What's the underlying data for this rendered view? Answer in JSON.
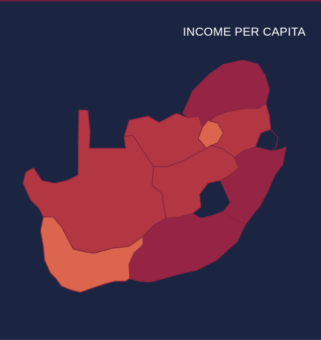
{
  "title": "INCOME PER CAPITA",
  "colors": {
    "background": "#1b2541",
    "dark": "#962444",
    "medium": "#b23742",
    "light": "#db654d",
    "hole": "#1b2541"
  },
  "regions": [
    {
      "id": "limpopo",
      "shade": "dark"
    },
    {
      "id": "mpumalanga",
      "shade": "medium"
    },
    {
      "id": "north-west",
      "shade": "medium"
    },
    {
      "id": "gauteng",
      "shade": "light"
    },
    {
      "id": "free-state",
      "shade": "medium"
    },
    {
      "id": "kwazulu-natal",
      "shade": "dark"
    },
    {
      "id": "northern-cape",
      "shade": "medium"
    },
    {
      "id": "eastern-cape",
      "shade": "dark"
    },
    {
      "id": "western-cape",
      "shade": "light"
    }
  ]
}
